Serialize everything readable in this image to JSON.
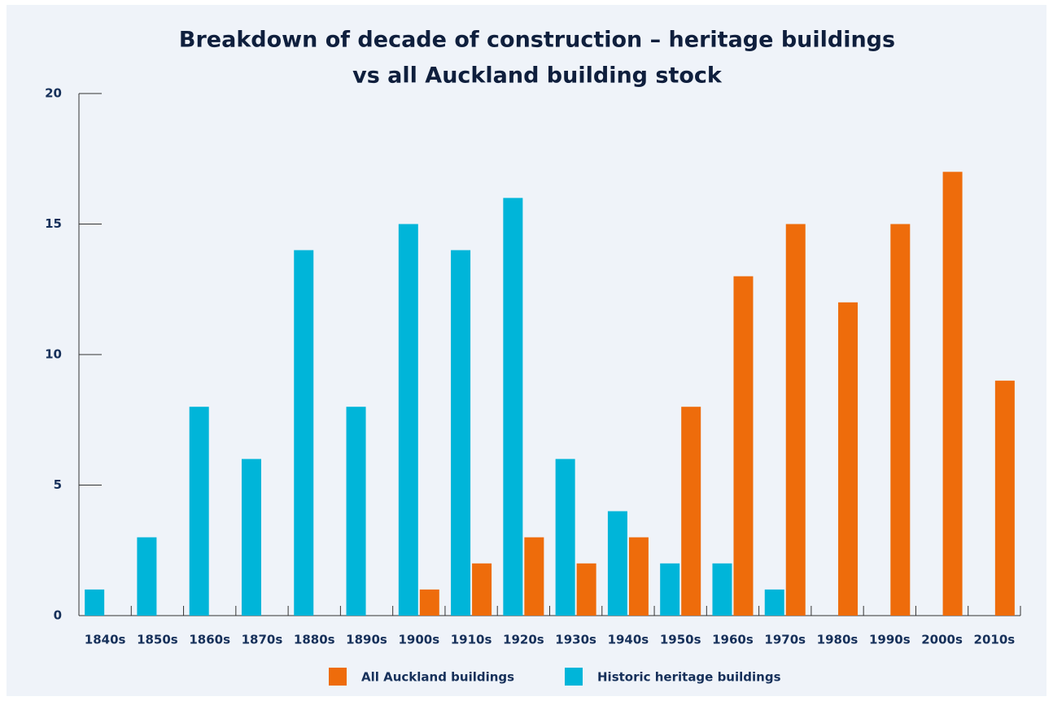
{
  "chart_data": {
    "type": "bar",
    "title": "Breakdown of decade of construction – heritage buildings",
    "subtitle": "vs all Auckland building stock",
    "categories": [
      "1840s",
      "1850s",
      "1860s",
      "1870s",
      "1880s",
      "1890s",
      "1900s",
      "1910s",
      "1920s",
      "1930s",
      "1940s",
      "1950s",
      "1960s",
      "1970s",
      "1980s",
      "1990s",
      "2000s",
      "2010s"
    ],
    "series": [
      {
        "name": "All Auckland buildings",
        "color": "#ee6c0b",
        "values": [
          0,
          0,
          0,
          0,
          0,
          0,
          1,
          2,
          3,
          2,
          3,
          8,
          13,
          15,
          12,
          15,
          17,
          9
        ]
      },
      {
        "name": "Historic heritage buildings",
        "color": "#00b5d9",
        "values": [
          1,
          3,
          8,
          6,
          14,
          8,
          15,
          14,
          16,
          6,
          4,
          2,
          2,
          1,
          0,
          0,
          0,
          0
        ]
      }
    ],
    "ylim": [
      0,
      20
    ],
    "yticks": [
      0,
      5,
      10,
      15,
      20
    ]
  }
}
